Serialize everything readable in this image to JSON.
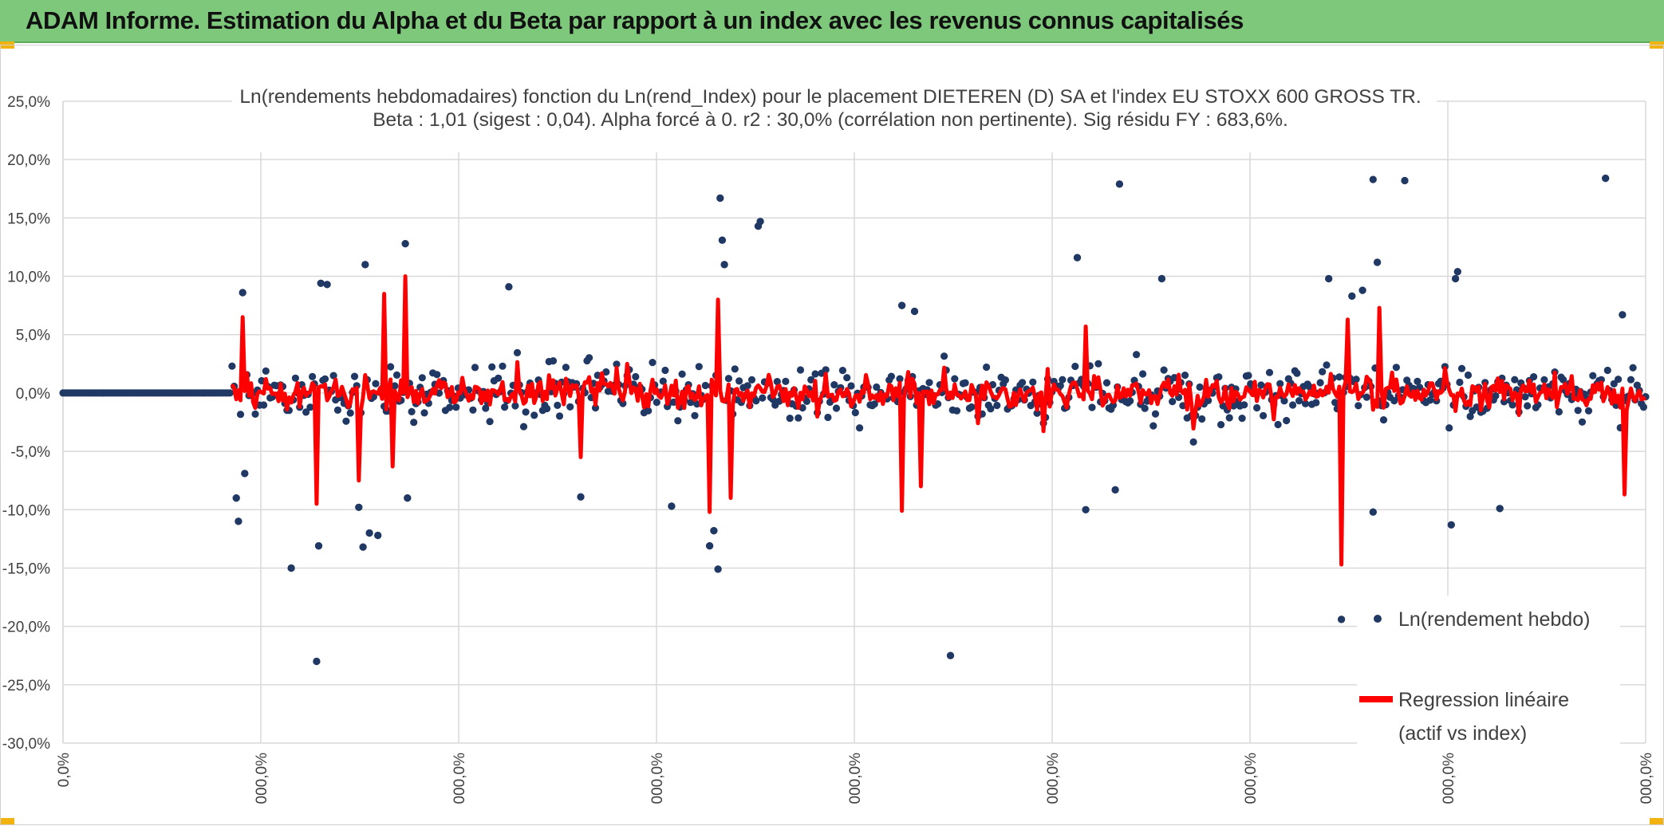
{
  "banner": {
    "title": "ADAM Informe. Estimation du Alpha et du Beta par rapport à un index avec les revenus connus capitalisés"
  },
  "colors": {
    "banner": "#7dc87a",
    "accent": "#f2b20f",
    "scatter": "#203864",
    "regression": "#ff0000",
    "grid": "#d9d9d9"
  },
  "chart_data": {
    "type": "scatter",
    "title_line1": "Ln(rendements hebdomadaires) fonction du Ln(rend_Index) pour le placement DIETEREN (D) SA et l'index EU STOXX 600 GROSS TR.",
    "title_line2": "Beta : 1,01 (sigest : 0,04). Alpha forcé à 0. r2 : 30,0% (corrélation non pertinente). Sig résidu FY : 683,6%.",
    "ylim": [
      -0.3,
      0.25
    ],
    "y_ticks": [
      {
        "value": 0.25,
        "label": "25,0%"
      },
      {
        "value": 0.2,
        "label": "20,0%"
      },
      {
        "value": 0.15,
        "label": "15,0%"
      },
      {
        "value": 0.1,
        "label": "10,0%"
      },
      {
        "value": 0.05,
        "label": "5,0%"
      },
      {
        "value": 0.0,
        "label": "0,0%"
      },
      {
        "value": -0.05,
        "label": "-5,0%"
      },
      {
        "value": -0.1,
        "label": "-10,0%"
      },
      {
        "value": -0.15,
        "label": "-15,0%"
      },
      {
        "value": -0.2,
        "label": "-20,0%"
      },
      {
        "value": -0.25,
        "label": "-25,0%"
      },
      {
        "value": -0.3,
        "label": "-30,0%"
      }
    ],
    "x_ticks": [
      "0,0%",
      "000,0%",
      "000,0%",
      "000,0%",
      "000,0%",
      "000,0%",
      "000,0%",
      "000,0%",
      "000,0%"
    ],
    "legend": {
      "position": "right",
      "entries": [
        "Ln(rendement hebdo)",
        "Regression linéaire",
        "(actif vs index)"
      ]
    },
    "series_scatter_name": "Ln(rendement hebdo)",
    "series_regression_name": "Regression linéaire (actif vs index)",
    "n_obs": 750,
    "flat_zero_obs": 80,
    "notable_points": [
      {
        "i": 82,
        "y": -0.09
      },
      {
        "i": 83,
        "y": -0.11
      },
      {
        "i": 85,
        "y": 0.086
      },
      {
        "i": 86,
        "y": -0.069
      },
      {
        "i": 108,
        "y": -0.15
      },
      {
        "i": 120,
        "y": -0.23
      },
      {
        "i": 122,
        "y": 0.094
      },
      {
        "i": 125,
        "y": 0.093
      },
      {
        "i": 121,
        "y": -0.131
      },
      {
        "i": 140,
        "y": -0.098
      },
      {
        "i": 142,
        "y": -0.132
      },
      {
        "i": 143,
        "y": 0.11
      },
      {
        "i": 145,
        "y": -0.12
      },
      {
        "i": 149,
        "y": -0.122
      },
      {
        "i": 162,
        "y": 0.128
      },
      {
        "i": 163,
        "y": -0.09
      },
      {
        "i": 211,
        "y": 0.091
      },
      {
        "i": 245,
        "y": -0.089
      },
      {
        "i": 288,
        "y": -0.097
      },
      {
        "i": 306,
        "y": -0.131
      },
      {
        "i": 308,
        "y": -0.118
      },
      {
        "i": 311,
        "y": 0.167
      },
      {
        "i": 312,
        "y": 0.131
      },
      {
        "i": 313,
        "y": 0.11
      },
      {
        "i": 310,
        "y": -0.151
      },
      {
        "i": 330,
        "y": 0.147
      },
      {
        "i": 329,
        "y": 0.143
      },
      {
        "i": 397,
        "y": 0.075
      },
      {
        "i": 403,
        "y": 0.07
      },
      {
        "i": 420,
        "y": -0.225
      },
      {
        "i": 480,
        "y": 0.116
      },
      {
        "i": 484,
        "y": -0.1
      },
      {
        "i": 500,
        "y": 0.179
      },
      {
        "i": 498,
        "y": -0.083
      },
      {
        "i": 520,
        "y": 0.098
      },
      {
        "i": 599,
        "y": 0.098
      },
      {
        "i": 605,
        "y": -0.194
      },
      {
        "i": 610,
        "y": 0.083
      },
      {
        "i": 615,
        "y": 0.088
      },
      {
        "i": 620,
        "y": 0.183
      },
      {
        "i": 622,
        "y": 0.112
      },
      {
        "i": 620,
        "y": -0.102
      },
      {
        "i": 635,
        "y": 0.182
      },
      {
        "i": 660,
        "y": 0.104
      },
      {
        "i": 659,
        "y": 0.098
      },
      {
        "i": 657,
        "y": -0.113
      },
      {
        "i": 680,
        "y": -0.099
      },
      {
        "i": 730,
        "y": 0.184
      },
      {
        "i": 738,
        "y": 0.067
      }
    ],
    "notable_regression": [
      {
        "i": 85,
        "y": 0.065
      },
      {
        "i": 120,
        "y": -0.095
      },
      {
        "i": 140,
        "y": -0.075
      },
      {
        "i": 152,
        "y": 0.085
      },
      {
        "i": 162,
        "y": 0.1
      },
      {
        "i": 156,
        "y": -0.063
      },
      {
        "i": 245,
        "y": -0.055
      },
      {
        "i": 306,
        "y": -0.102
      },
      {
        "i": 310,
        "y": 0.08
      },
      {
        "i": 316,
        "y": -0.09
      },
      {
        "i": 397,
        "y": -0.101
      },
      {
        "i": 406,
        "y": -0.08
      },
      {
        "i": 484,
        "y": 0.057
      },
      {
        "i": 605,
        "y": -0.147
      },
      {
        "i": 608,
        "y": 0.063
      },
      {
        "i": 623,
        "y": 0.073
      },
      {
        "i": 739,
        "y": -0.087
      }
    ]
  }
}
